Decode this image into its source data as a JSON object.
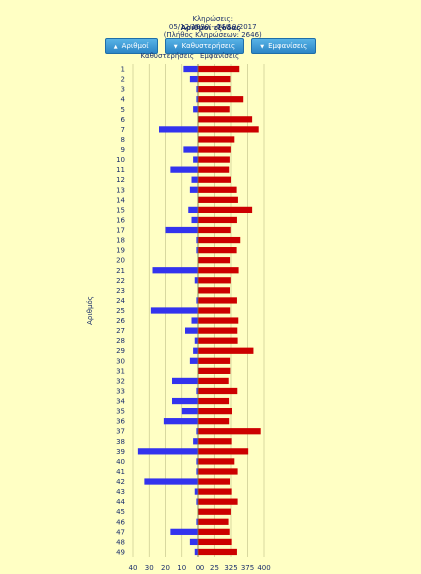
{
  "header": {
    "draws_label": "Κληρώσεις:",
    "date_range": "05/12/1990 - 04/10/2017",
    "count_text": "(Πλήθος Κληρώσεων: 2646)"
  },
  "sort": {
    "title": "Αριθμοί εξόδας",
    "buttons": [
      {
        "label": "Αριθμοί",
        "arrow": "▲"
      },
      {
        "label": "Καθυστερήσεις",
        "arrow": "▼"
      },
      {
        "label": "Εμφανίσεις",
        "arrow": "▼"
      }
    ]
  },
  "colors": {
    "delay": "#3333ee",
    "appear": "#cc0000",
    "grid": "#c8c890",
    "text": "#1a2e6b"
  },
  "chart_data": {
    "type": "bar",
    "orientation": "horizontal-diverging",
    "ylabel": "Αριθμός",
    "categories": [
      "1",
      "2",
      "3",
      "4",
      "5",
      "6",
      "7",
      "8",
      "9",
      "10",
      "11",
      "12",
      "13",
      "14",
      "15",
      "16",
      "17",
      "18",
      "19",
      "20",
      "21",
      "22",
      "23",
      "24",
      "25",
      "26",
      "27",
      "28",
      "29",
      "30",
      "31",
      "32",
      "33",
      "34",
      "35",
      "36",
      "37",
      "38",
      "39",
      "40",
      "41",
      "42",
      "43",
      "44",
      "45",
      "46",
      "47",
      "48",
      "49"
    ],
    "left_axis": {
      "label": "Καθυστερήσεις",
      "ticks": [
        "40",
        "30",
        "20",
        "10",
        "0"
      ],
      "range": [
        0,
        40
      ],
      "values": [
        9,
        5,
        1,
        1,
        3,
        0,
        24,
        0,
        9,
        3,
        17,
        4,
        5,
        0,
        6,
        4,
        20,
        1,
        1,
        0,
        28,
        2,
        0,
        1,
        29,
        4,
        8,
        2,
        3,
        5,
        0,
        16,
        1,
        16,
        10,
        21,
        1,
        3,
        37,
        1,
        1,
        33,
        2,
        1,
        0,
        1,
        17,
        5,
        2
      ]
    },
    "right_axis": {
      "label": "Εμφανίσεις",
      "ticks": [
        "0",
        "25",
        "325",
        "375",
        "400"
      ],
      "tick_values": [
        0,
        25,
        325,
        375,
        400
      ],
      "range": [
        0,
        400
      ],
      "values": [
        350,
        315,
        318,
        362,
        302,
        382,
        392,
        335,
        323,
        305,
        293,
        325,
        342,
        346,
        382,
        343,
        320,
        353,
        342,
        308,
        348,
        322,
        307,
        343,
        310,
        347,
        344,
        345,
        384,
        309,
        313,
        284,
        344,
        290,
        328,
        292,
        395,
        327,
        376,
        335,
        345,
        307,
        327,
        345,
        324,
        281,
        302,
        327,
        343
      ]
    }
  }
}
